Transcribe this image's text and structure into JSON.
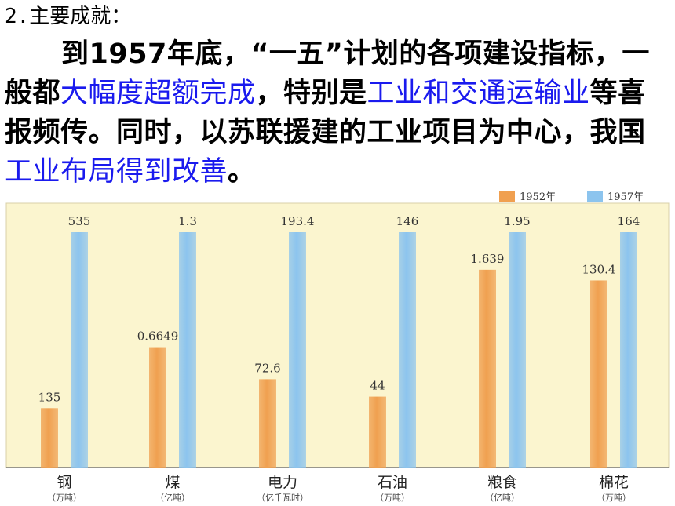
{
  "heading": "2.主要成就：",
  "paragraph": [
    {
      "text": "到1957年底，“一五”计划的各项建设指标，",
      "highlight": false
    },
    {
      "text": "一般都",
      "highlight": false
    },
    {
      "text": "大幅度超额完成",
      "highlight": true
    },
    {
      "text": "，特别是",
      "highlight": false
    },
    {
      "text": "工业和交通运输业",
      "highlight": true
    },
    {
      "text": "等喜报频传。同时，以苏联援建的工业项目为中心，我国",
      "highlight": false
    },
    {
      "text": "工业布局得到改善",
      "highlight": true
    },
    {
      "text": "。",
      "highlight": false
    }
  ],
  "colors": {
    "series_1952": "#f0a050",
    "series_1957": "#8cc4ee",
    "plot_bg": "#fbf5cf",
    "highlight_text": "#1a1aee"
  },
  "chart_data": {
    "type": "bar",
    "categories": [
      "钢",
      "煤",
      "电力",
      "石油",
      "粮食",
      "棉花"
    ],
    "units": [
      "（万吨）",
      "（亿吨）",
      "（亿千瓦时）",
      "（万吨）",
      "（亿吨）",
      "（万吨）"
    ],
    "series": [
      {
        "name": "1952年",
        "values": [
          135,
          0.6649,
          72.6,
          44,
          1.639,
          130.4
        ],
        "labels": [
          "135",
          "0.6649",
          "72.6",
          "44",
          "1.639",
          "130.4"
        ]
      },
      {
        "name": "1957年",
        "values": [
          535,
          1.3,
          193.4,
          146,
          1.95,
          164
        ],
        "labels": [
          "535",
          "1.3",
          "193.4",
          "146",
          "1.95",
          "164"
        ]
      }
    ],
    "legend_position": "top-right",
    "grid": false
  }
}
